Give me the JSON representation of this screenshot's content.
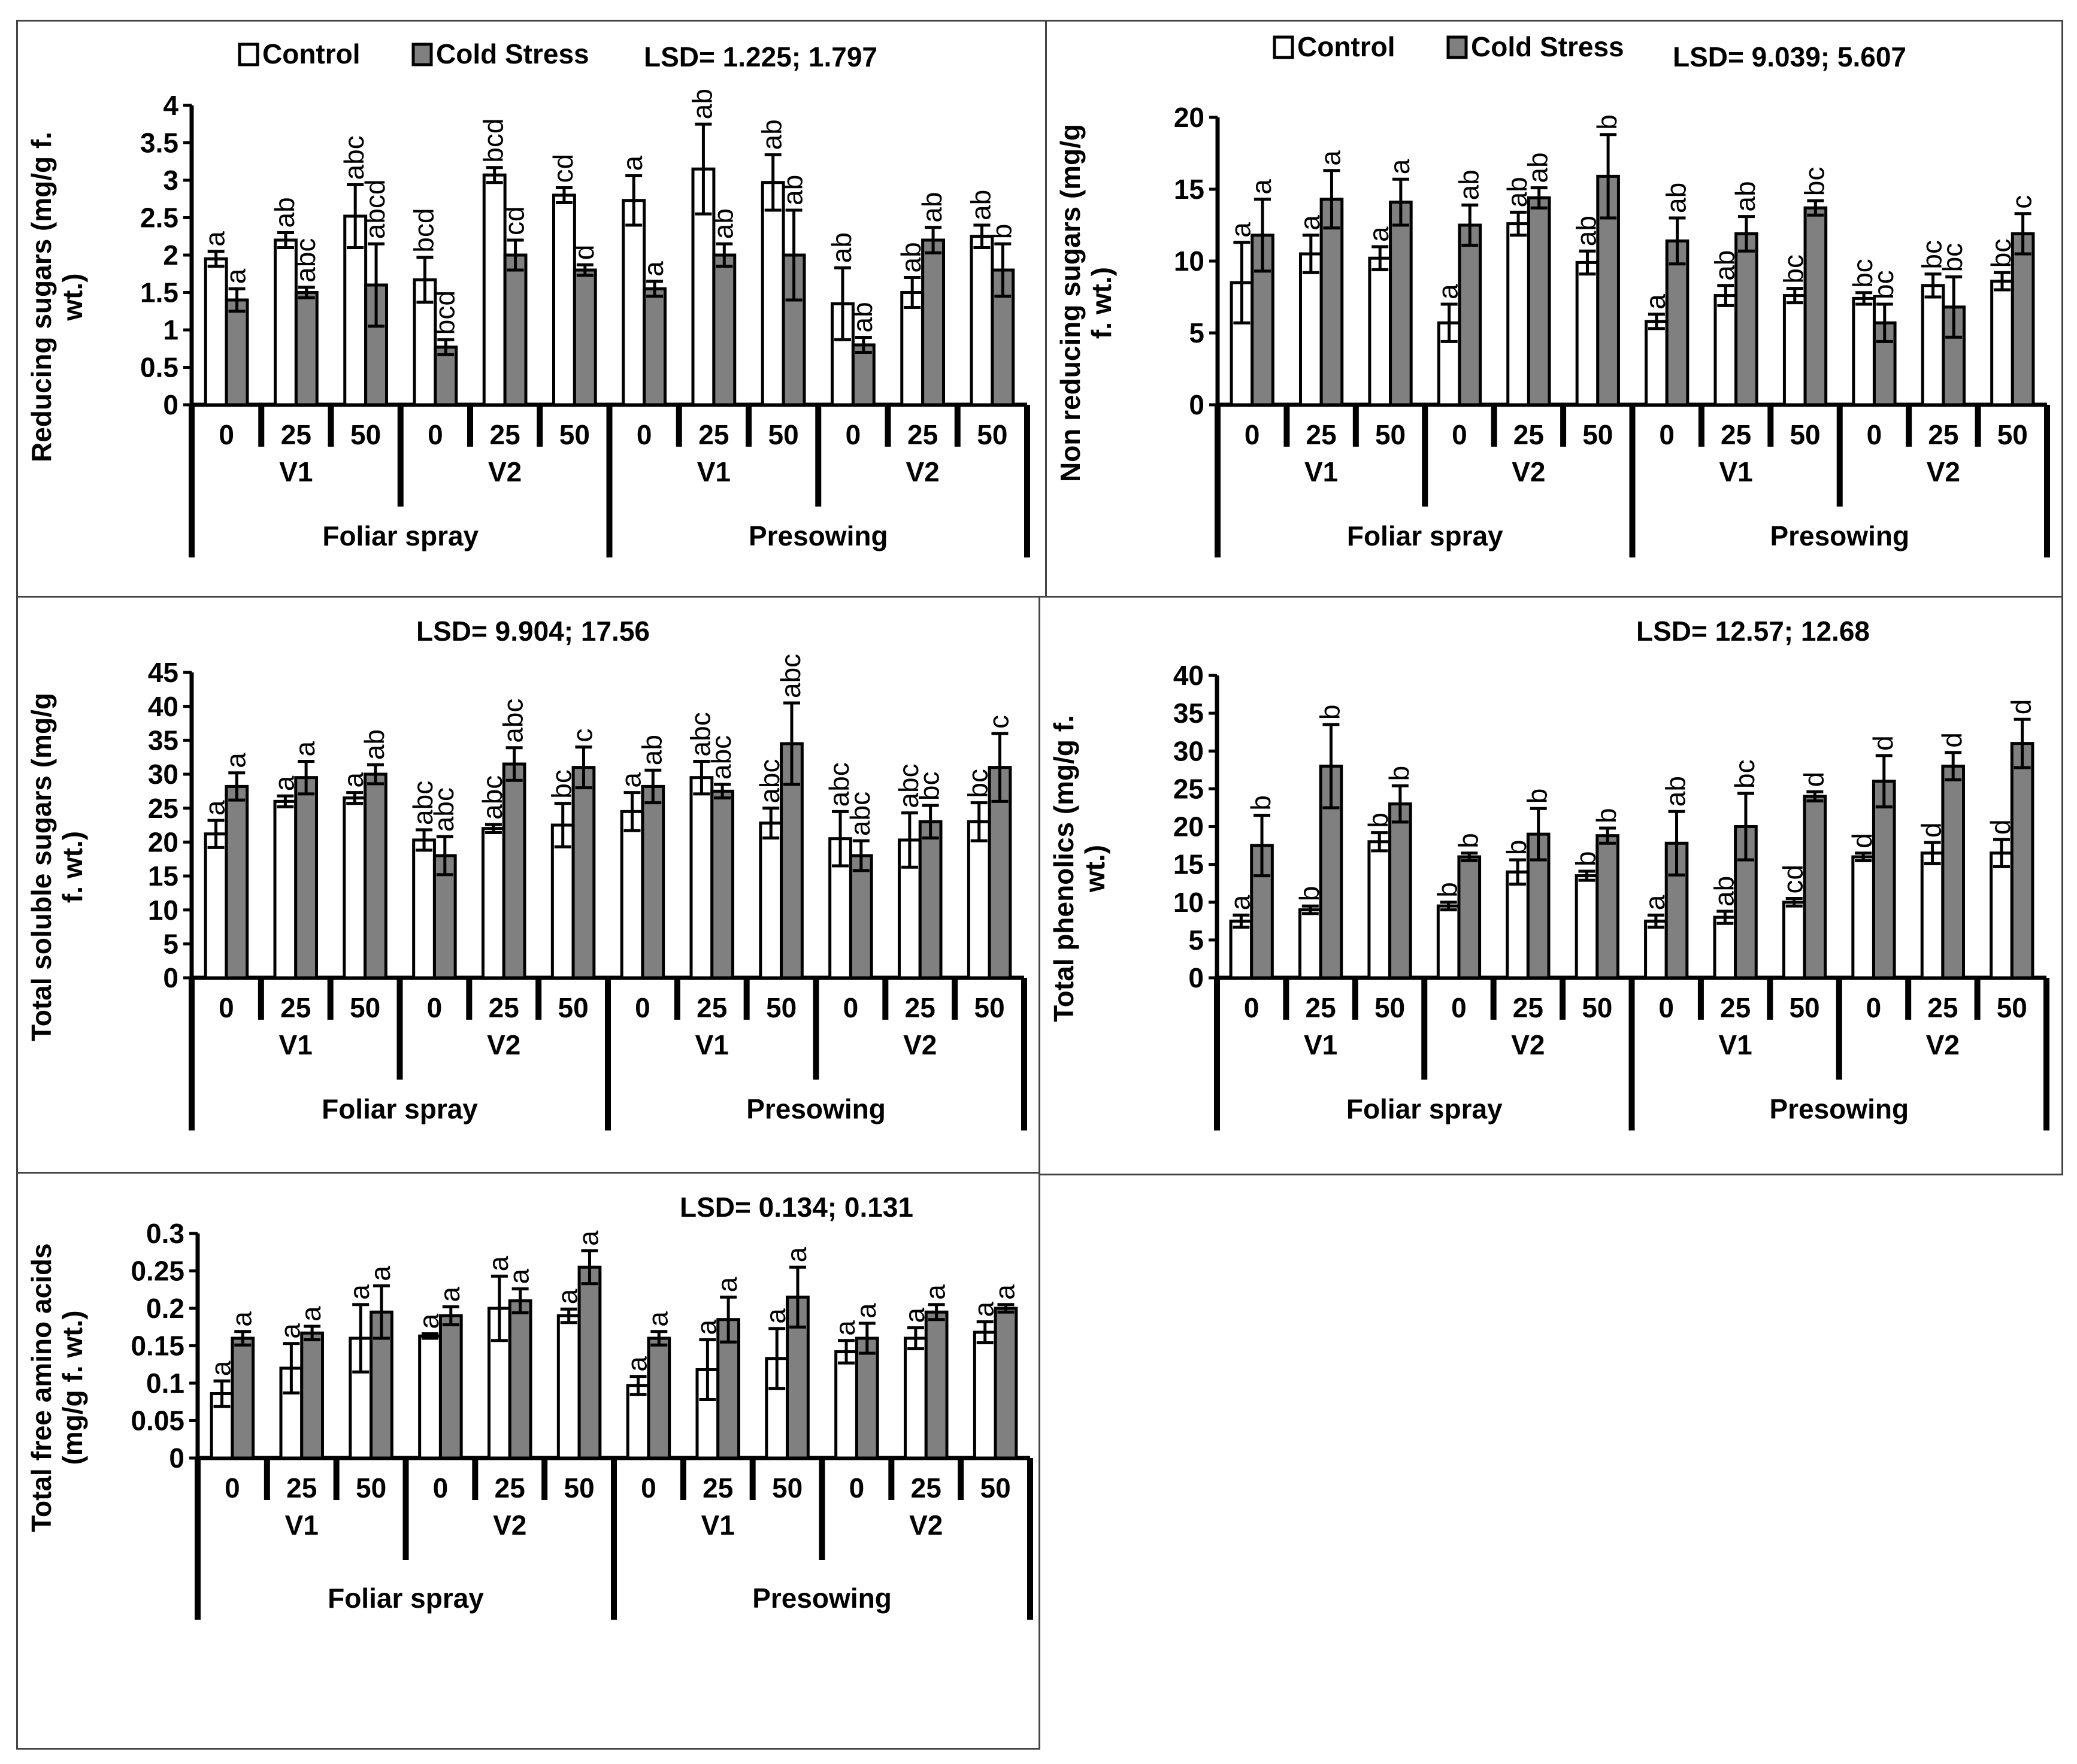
{
  "legend": {
    "control": "Control",
    "cold": "Cold Stress"
  },
  "colors": {
    "control": "#ffffff",
    "cold": "#808080",
    "axis": "#000000",
    "border": "#444444"
  },
  "chart_data": [
    {
      "type": "bar",
      "lsd": "LSD= 1.225; 1.797",
      "ylabel": [
        "Reducing sugars (mg/g f.",
        "wt.)"
      ],
      "ylim": [
        0,
        4
      ],
      "yticks": [
        "0",
        "0.5",
        "1",
        "1.5",
        "2",
        "2.5",
        "3",
        "3.5",
        "4"
      ],
      "doses": [
        "0",
        "25",
        "50",
        "0",
        "25",
        "50",
        "0",
        "25",
        "50",
        "0",
        "25",
        "50"
      ],
      "varieties": [
        "V1",
        "V2",
        "V1",
        "V2"
      ],
      "methods": [
        "Foliar spray",
        "Presowing"
      ],
      "show_legend": true,
      "series": [
        {
          "name": "Control",
          "values": [
            1.95,
            2.2,
            2.52,
            1.67,
            3.07,
            2.8,
            2.73,
            3.15,
            2.97,
            1.35,
            1.5,
            2.25
          ],
          "errors": [
            0.1,
            0.1,
            0.42,
            0.3,
            0.1,
            0.1,
            0.33,
            0.6,
            0.37,
            0.48,
            0.2,
            0.15
          ],
          "letters": [
            "a",
            "ab",
            "abc",
            "bcd",
            "bcd",
            "cd",
            "a",
            "ab",
            "ab",
            "ab",
            "ab",
            "ab"
          ]
        },
        {
          "name": "Cold Stress",
          "values": [
            1.4,
            1.5,
            1.6,
            0.77,
            2.0,
            1.8,
            1.55,
            2.0,
            2.0,
            0.8,
            2.2,
            1.8
          ],
          "errors": [
            0.15,
            0.07,
            0.55,
            0.1,
            0.2,
            0.07,
            0.1,
            0.15,
            0.6,
            0.1,
            0.17,
            0.35
          ],
          "letters": [
            "a",
            "abc",
            "abcd",
            "bcd",
            "cd",
            "d",
            "a",
            "ab",
            "ab",
            "ab",
            "ab",
            "b"
          ]
        }
      ]
    },
    {
      "type": "bar",
      "lsd": "LSD= 9.039; 5.607",
      "ylabel": [
        "Non reducing sugars (mg/g",
        "f. wt.)"
      ],
      "ylim": [
        0,
        20
      ],
      "yticks": [
        "0",
        "5",
        "10",
        "15",
        "20"
      ],
      "doses": [
        "0",
        "25",
        "50",
        "0",
        "25",
        "50",
        "0",
        "25",
        "50",
        "0",
        "25",
        "50"
      ],
      "varieties": [
        "V1",
        "V2",
        "V1",
        "V2"
      ],
      "methods": [
        "Foliar spray",
        "Presowing"
      ],
      "show_legend": true,
      "series": [
        {
          "name": "Control",
          "values": [
            8.5,
            10.5,
            10.2,
            5.7,
            12.6,
            9.9,
            5.8,
            7.6,
            7.6,
            7.4,
            8.3,
            8.6
          ],
          "errors": [
            2.8,
            1.3,
            0.8,
            1.3,
            0.8,
            0.8,
            0.5,
            0.7,
            0.5,
            0.4,
            0.8,
            0.6
          ],
          "letters": [
            "a",
            "a",
            "a",
            "a",
            "ab",
            "ab",
            "a",
            "ab",
            "bc",
            "bc",
            "bc",
            "bc"
          ]
        },
        {
          "name": "Cold Stress",
          "values": [
            11.8,
            14.3,
            14.1,
            12.5,
            14.4,
            15.9,
            11.4,
            11.9,
            13.7,
            5.7,
            6.8,
            11.9
          ],
          "errors": [
            2.5,
            2.0,
            1.6,
            1.4,
            0.7,
            2.9,
            1.6,
            1.2,
            0.5,
            1.3,
            2.1,
            1.4
          ],
          "letters": [
            "a",
            "a",
            "a",
            "ab",
            "ab",
            "b",
            "ab",
            "ab",
            "bc",
            "bc",
            "bc",
            "c"
          ]
        }
      ]
    },
    {
      "type": "bar",
      "lsd": "LSD= 9.904; 17.56",
      "ylabel": [
        "Total soluble sugars (mg/g",
        "f. wt.)"
      ],
      "ylim": [
        0,
        45
      ],
      "yticks": [
        "0",
        "5",
        "10",
        "15",
        "20",
        "25",
        "30",
        "35",
        "40",
        "45"
      ],
      "doses": [
        "0",
        "25",
        "50",
        "0",
        "25",
        "50",
        "0",
        "25",
        "50",
        "0",
        "25",
        "50"
      ],
      "varieties": [
        "V1",
        "V2",
        "V1",
        "V2"
      ],
      "methods": [
        "Foliar spray",
        "Presowing"
      ],
      "show_legend": false,
      "series": [
        {
          "name": "Control",
          "values": [
            21.2,
            26.0,
            26.5,
            20.3,
            22.0,
            22.5,
            24.5,
            29.5,
            22.8,
            20.5,
            20.3,
            23.0
          ],
          "errors": [
            2.0,
            0.8,
            0.8,
            1.5,
            0.6,
            3.2,
            2.8,
            2.4,
            2.2,
            4.0,
            4.0,
            2.8
          ],
          "letters": [
            "a",
            "a",
            "a",
            "abc",
            "abc",
            "bc",
            "a",
            "abc",
            "abc",
            "abc",
            "abc",
            "bc"
          ]
        },
        {
          "name": "Cold Stress",
          "values": [
            28.2,
            29.5,
            30.0,
            18.0,
            31.5,
            31.0,
            28.2,
            27.5,
            34.5,
            18.0,
            23.0,
            31.0
          ],
          "errors": [
            2.0,
            2.4,
            1.4,
            2.8,
            2.4,
            3.0,
            2.4,
            1.0,
            6.0,
            2.2,
            2.4,
            5.0
          ],
          "letters": [
            "a",
            "a",
            "ab",
            "abc",
            "abc",
            "c",
            "ab",
            "abc",
            "abc",
            "abc",
            "bc",
            "c"
          ]
        }
      ]
    },
    {
      "type": "bar",
      "lsd": "LSD= 12.57; 12.68",
      "ylabel": [
        "Total phenolics (mg/g f.",
        "wt.)"
      ],
      "ylim": [
        0,
        40
      ],
      "yticks": [
        "0",
        "5",
        "10",
        "15",
        "20",
        "25",
        "30",
        "35",
        "40"
      ],
      "doses": [
        "0",
        "25",
        "50",
        "0",
        "25",
        "50",
        "0",
        "25",
        "50",
        "0",
        "25",
        "50"
      ],
      "varieties": [
        "V1",
        "V2",
        "V1",
        "V2"
      ],
      "methods": [
        "Foliar spray",
        "Presowing"
      ],
      "show_legend": false,
      "series": [
        {
          "name": "Control",
          "values": [
            7.5,
            9.0,
            18.0,
            9.5,
            14.0,
            13.5,
            7.5,
            8.0,
            10.0,
            16.0,
            16.5,
            16.5
          ],
          "errors": [
            0.8,
            0.5,
            1.2,
            0.5,
            1.6,
            0.6,
            0.8,
            0.8,
            0.5,
            0.5,
            1.4,
            1.8
          ],
          "letters": [
            "a",
            "b",
            "b",
            "b",
            "b",
            "b",
            "a",
            "ab",
            "cd",
            "d",
            "d",
            "d"
          ]
        },
        {
          "name": "Cold Stress",
          "values": [
            17.5,
            28.0,
            23.0,
            16.0,
            19.0,
            18.8,
            17.8,
            20.0,
            24.0,
            26.0,
            28.0,
            31.0
          ],
          "errors": [
            4.0,
            5.5,
            2.4,
            0.5,
            3.4,
            1.0,
            4.2,
            4.4,
            0.6,
            3.4,
            1.8,
            3.2
          ],
          "letters": [
            "b",
            "b",
            "b",
            "b",
            "b",
            "b",
            "ab",
            "bc",
            "d",
            "d",
            "d",
            "d"
          ]
        }
      ]
    },
    {
      "type": "bar",
      "lsd": "LSD= 0.134; 0.131",
      "ylabel": [
        "Total free amino acids",
        "(mg/g f. wt.)"
      ],
      "ylim": [
        0,
        0.3
      ],
      "yticks": [
        "0",
        "0.05",
        "0.1",
        "0.15",
        "0.2",
        "0.25",
        "0.3"
      ],
      "doses": [
        "0",
        "25",
        "50",
        "0",
        "25",
        "50",
        "0",
        "25",
        "50",
        "0",
        "25",
        "50"
      ],
      "varieties": [
        "V1",
        "V2",
        "V1",
        "V2"
      ],
      "methods": [
        "Foliar spray",
        "Presowing"
      ],
      "show_legend": false,
      "series": [
        {
          "name": "Control",
          "values": [
            0.086,
            0.12,
            0.16,
            0.163,
            0.2,
            0.19,
            0.097,
            0.118,
            0.133,
            0.142,
            0.16,
            0.168
          ],
          "errors": [
            0.017,
            0.033,
            0.045,
            0.003,
            0.043,
            0.009,
            0.012,
            0.04,
            0.04,
            0.015,
            0.014,
            0.014
          ],
          "letters": [
            "a",
            "a",
            "a",
            "a",
            "a",
            "a",
            "a",
            "a",
            "a",
            "a",
            "a",
            "a"
          ]
        },
        {
          "name": "Cold Stress",
          "values": [
            0.16,
            0.167,
            0.195,
            0.19,
            0.21,
            0.255,
            0.16,
            0.185,
            0.215,
            0.16,
            0.195,
            0.2
          ],
          "errors": [
            0.009,
            0.009,
            0.035,
            0.012,
            0.016,
            0.022,
            0.009,
            0.03,
            0.04,
            0.02,
            0.01,
            0.005
          ],
          "letters": [
            "a",
            "a",
            "a",
            "a",
            "a",
            "a",
            "a",
            "a",
            "a",
            "a",
            "a",
            "a"
          ]
        }
      ]
    }
  ]
}
